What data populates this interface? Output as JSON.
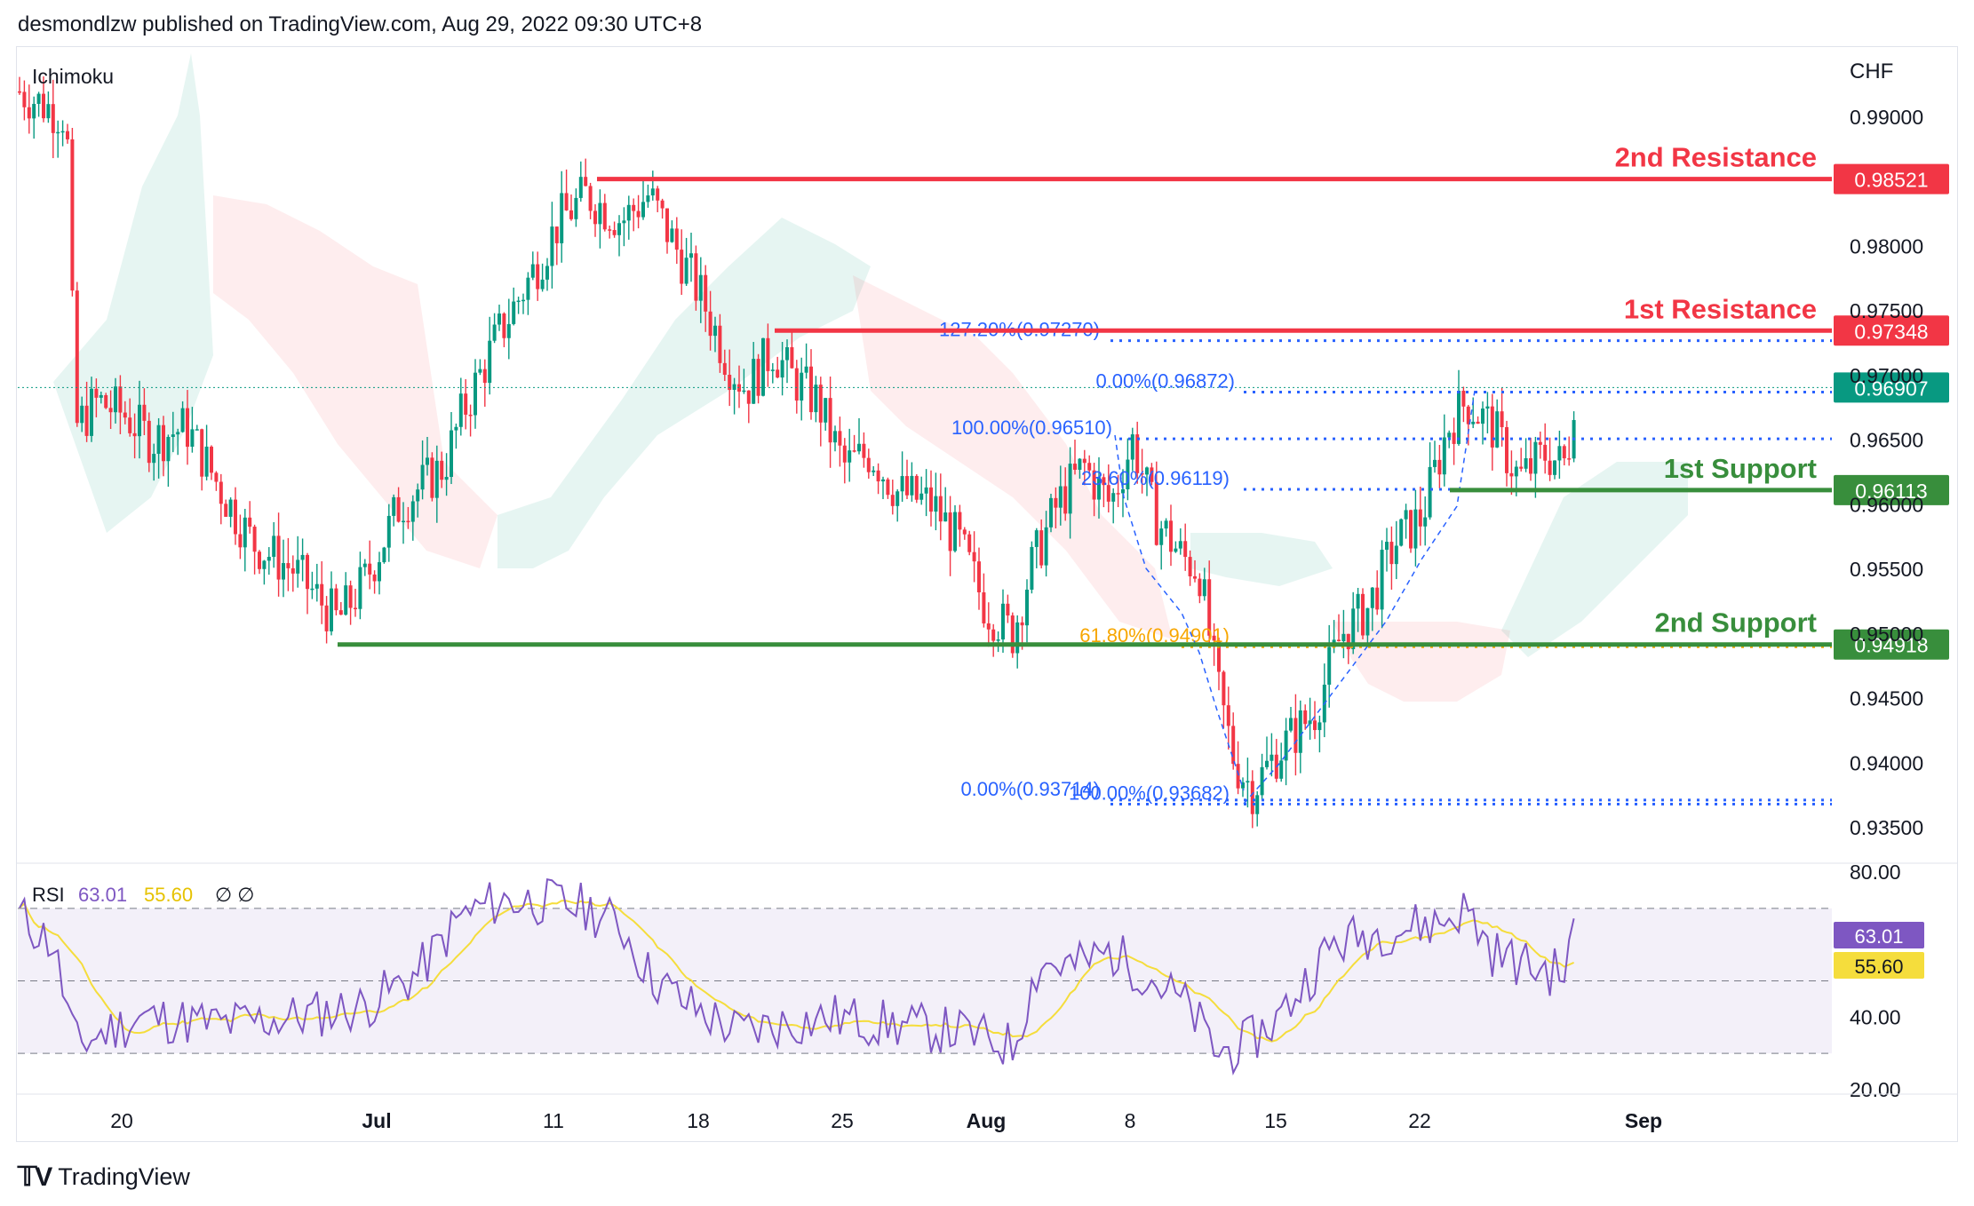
{
  "header": {
    "publisher": "desmondlzw published on TradingView.com, Aug 29, 2022 09:30 UTC+8"
  },
  "footer": {
    "brand": "TradingView",
    "logo_icon": "tradingview-logo-icon"
  },
  "chart_data": {
    "type": "candlestick",
    "currency_label": "CHF",
    "indicator_label": "Ichimoku",
    "price_axis": {
      "ylim": [
        0.932,
        0.995
      ],
      "ticks": [
        "0.99000",
        "0.98000",
        "0.97500",
        "0.97000",
        "0.96500",
        "0.96000",
        "0.95500",
        "0.95000",
        "0.94500",
        "0.94000",
        "0.93500"
      ]
    },
    "time_axis": {
      "ticks": [
        "20",
        "Jul",
        "11",
        "18",
        "25",
        "Aug",
        "8",
        "15",
        "22",
        "Sep"
      ]
    },
    "levels": [
      {
        "label": "2nd Resistance",
        "price": 0.98521,
        "price_text": "0.98521",
        "color": "#f23645"
      },
      {
        "label": "1st Resistance",
        "price": 0.97348,
        "price_text": "0.97348",
        "color": "#f23645"
      },
      {
        "label": "1st Support",
        "price": 0.96113,
        "price_text": "0.96113",
        "color": "#388e3c"
      },
      {
        "label": "2nd Support",
        "price": 0.94918,
        "price_text": "0.94918",
        "color": "#388e3c"
      }
    ],
    "last_price": {
      "price": 0.96907,
      "text": "0.96907",
      "color": "#089981"
    },
    "fib_labels": [
      {
        "text": "127.20%(0.97270)",
        "price": 0.9727
      },
      {
        "text": "0.00%(0.96872)",
        "price": 0.96872
      },
      {
        "text": "100.00%(0.96510)",
        "price": 0.9651
      },
      {
        "text": "23.60%(0.96119)",
        "price": 0.96119
      },
      {
        "text": "61.80%(0.94901)",
        "price": 0.94901
      },
      {
        "text": "100.00%(0.93682)",
        "price": 0.93682
      },
      {
        "text": "0.00%(0.93714)",
        "price": 0.93714
      }
    ],
    "rsi": {
      "label": "RSI",
      "value": "63.01",
      "ma_value": "55.60",
      "extra": "∅ ∅",
      "ylim": [
        20,
        80
      ],
      "ticks": [
        "80.00",
        "40.00",
        "20.00"
      ],
      "bands": [
        70,
        50,
        30
      ],
      "rsi_color": "#7e57c2",
      "ma_color": "#f5dd3c"
    }
  }
}
